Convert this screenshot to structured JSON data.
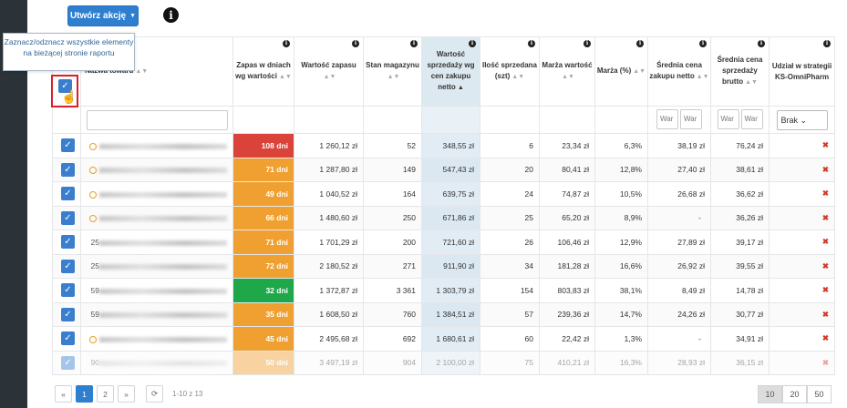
{
  "toolbar": {
    "action_label": "Utwórz akcję"
  },
  "tooltip": "Zaznacz/odznacz wszystkie elementy na bieżącej stronie raportu",
  "columns": {
    "name": "Nazwa towaru",
    "zapas_dni": "Zapas w dniach wg wartości",
    "wartosc_zapasu": "Wartość zapasu",
    "stan": "Stan magazynu",
    "wart_sprzedazy": "Wartość sprzedaży wg cen zakupu netto",
    "ilosc": "Ilość sprzedana (szt)",
    "marza_wart": "Marża wartość",
    "marza_proc": "Marża (%)",
    "sr_zakupu": "Średnia cena zakupu netto",
    "sr_sprzedazy": "Średnia cena sprzedaży brutto",
    "udzial": "Udział w strategii KS-OmniPharm"
  },
  "filters": {
    "mini_placeholder": "War",
    "strategy_select": "Brak"
  },
  "rows": [
    {
      "prefix": "",
      "days": "108 dni",
      "days_color": "#d9433a",
      "zapas": "1 260,12 zł",
      "stan": "52",
      "sprzedaz": "348,55 zł",
      "ilosc": "6",
      "marza": "23,34 zł",
      "marza_p": "6,3%",
      "sr_zak": "38,19 zł",
      "sr_sprz": "76,24 zł"
    },
    {
      "prefix": "",
      "days": "71 dni",
      "days_color": "#f0a030",
      "zapas": "1 287,80 zł",
      "stan": "149",
      "sprzedaz": "547,43 zł",
      "ilosc": "20",
      "marza": "80,41 zł",
      "marza_p": "12,8%",
      "sr_zak": "27,40 zł",
      "sr_sprz": "38,61 zł"
    },
    {
      "prefix": "",
      "days": "49 dni",
      "days_color": "#f0a030",
      "zapas": "1 040,52 zł",
      "stan": "164",
      "sprzedaz": "639,75 zł",
      "ilosc": "24",
      "marza": "74,87 zł",
      "marza_p": "10,5%",
      "sr_zak": "26,68 zł",
      "sr_sprz": "36,62 zł"
    },
    {
      "prefix": "",
      "days": "66 dni",
      "days_color": "#f0a030",
      "zapas": "1 480,60 zł",
      "stan": "250",
      "sprzedaz": "671,86 zł",
      "ilosc": "25",
      "marza": "65,20 zł",
      "marza_p": "8,9%",
      "sr_zak": "-",
      "sr_sprz": "36,26 zł"
    },
    {
      "prefix": "25",
      "days": "71 dni",
      "days_color": "#f0a030",
      "zapas": "1 701,29 zł",
      "stan": "200",
      "sprzedaz": "721,60 zł",
      "ilosc": "26",
      "marza": "106,46 zł",
      "marza_p": "12,9%",
      "sr_zak": "27,89 zł",
      "sr_sprz": "39,17 zł"
    },
    {
      "prefix": "25",
      "days": "72 dni",
      "days_color": "#f0a030",
      "zapas": "2 180,52 zł",
      "stan": "271",
      "sprzedaz": "911,90 zł",
      "ilosc": "34",
      "marza": "181,28 zł",
      "marza_p": "16,6%",
      "sr_zak": "26,92 zł",
      "sr_sprz": "39,55 zł"
    },
    {
      "prefix": "59",
      "days": "32 dni",
      "days_color": "#1fa84a",
      "zapas": "1 372,87 zł",
      "stan": "3 361",
      "sprzedaz": "1 303,79 zł",
      "ilosc": "154",
      "marza": "803,83 zł",
      "marza_p": "38,1%",
      "sr_zak": "8,49 zł",
      "sr_sprz": "14,78 zł"
    },
    {
      "prefix": "59",
      "days": "35 dni",
      "days_color": "#f0a030",
      "zapas": "1 608,50 zł",
      "stan": "760",
      "sprzedaz": "1 384,51 zł",
      "ilosc": "57",
      "marza": "239,36 zł",
      "marza_p": "14,7%",
      "sr_zak": "24,26 zł",
      "sr_sprz": "30,77 zł"
    },
    {
      "prefix": "",
      "days": "45 dni",
      "days_color": "#f0a030",
      "zapas": "2 495,68 zł",
      "stan": "692",
      "sprzedaz": "1 680,61 zł",
      "ilosc": "60",
      "marza": "22,42 zł",
      "marza_p": "1,3%",
      "sr_zak": "-",
      "sr_sprz": "34,91 zł"
    },
    {
      "prefix": "90",
      "days": "50 dni",
      "days_color": "#f0a030",
      "zapas": "3 497,19 zł",
      "stan": "904",
      "sprzedaz": "2 100,00 zł",
      "ilosc": "75",
      "marza": "410,21 zł",
      "marza_p": "16,3%",
      "sr_zak": "28,93 zł",
      "sr_sprz": "36,15 zł"
    }
  ],
  "pager": {
    "prev": "«",
    "page1": "1",
    "page2": "2",
    "next": "»",
    "info": "1-10 z 13"
  },
  "page_sizes": [
    "10",
    "20",
    "50"
  ],
  "icons": {
    "info": "info-icon",
    "check": "checkmark-icon",
    "remove": "x-icon",
    "refresh": "refresh-icon",
    "cursor": "hand-pointer-icon",
    "warning": "clock-warning-icon"
  }
}
